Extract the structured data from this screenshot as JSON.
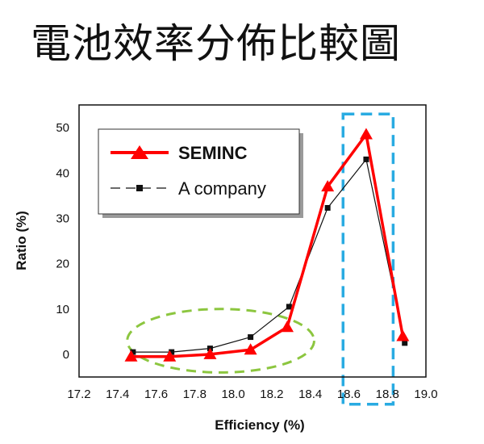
{
  "page": {
    "title": "電池效率分佈比較圖"
  },
  "chart_data": {
    "type": "line",
    "title": "電池效率分佈比較圖",
    "xlabel": "Efficiency (%)",
    "ylabel": "Ratio (%)",
    "xlim": [
      17.2,
      19.0
    ],
    "ylim": [
      -5,
      55
    ],
    "x_ticks": [
      "17.2",
      "17.4",
      "17.6",
      "17.8",
      "18.0",
      "18.2",
      "18.4",
      "18.6",
      "18.8",
      "19.0"
    ],
    "y_ticks": [
      "0",
      "10",
      "20",
      "30",
      "40",
      "50"
    ],
    "legend_position": "top-left",
    "series": [
      {
        "name": "SEMINC",
        "color": "#ff0000",
        "marker": "triangle",
        "x": [
          17.47,
          17.67,
          17.88,
          18.09,
          18.28,
          18.49,
          18.69,
          18.88
        ],
        "y": [
          -0.5,
          -0.5,
          0.0,
          1.0,
          6.0,
          37.0,
          48.5,
          4.0
        ]
      },
      {
        "name": "A company",
        "color": "#111111",
        "marker": "square",
        "x": [
          17.48,
          17.68,
          17.88,
          18.09,
          18.29,
          18.49,
          18.69,
          18.89
        ],
        "y": [
          0.5,
          0.5,
          1.3,
          3.8,
          10.5,
          32.3,
          43.0,
          2.5
        ]
      }
    ],
    "annotations": [
      {
        "shape": "dashed-ellipse",
        "color": "#8cc63f",
        "x_range": [
          17.45,
          18.42
        ],
        "y_range": [
          -4,
          10
        ]
      },
      {
        "shape": "dashed-rectangle",
        "color": "#29abe2",
        "x_range": [
          18.57,
          18.83
        ],
        "y_range": [
          -11,
          53
        ]
      }
    ]
  }
}
